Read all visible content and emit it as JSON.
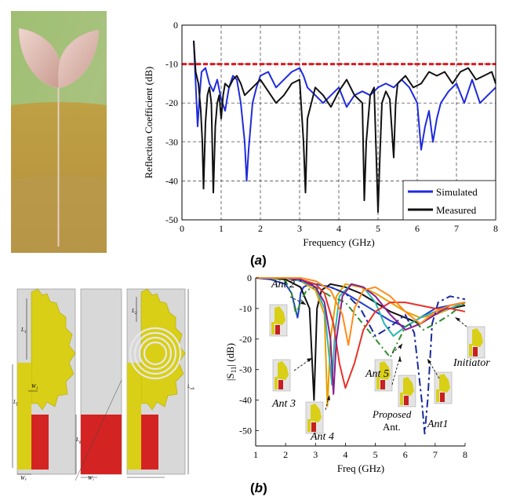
{
  "panel_a_label": "a",
  "panel_b_label": "b",
  "chart_data": [
    {
      "type": "line",
      "xlabel": "Frequency (GHz)",
      "ylabel": "Reflection Coefficient (dB)",
      "xlim": [
        0,
        8
      ],
      "ylim": [
        -50,
        0
      ],
      "xticks": [
        0,
        1,
        2,
        3,
        4,
        5,
        6,
        7,
        8
      ],
      "yticks": [
        0,
        -10,
        -20,
        -30,
        -40,
        -50
      ],
      "grid": true,
      "legend_position": "bottom-right",
      "threshold": {
        "y": -10,
        "color": "#e8141b",
        "style": "dashed"
      },
      "series": [
        {
          "name": "Simulated",
          "color": "#1f2bdb",
          "x": [
            0.3,
            0.35,
            0.4,
            0.45,
            0.5,
            0.6,
            0.7,
            0.8,
            0.9,
            1.0,
            1.1,
            1.2,
            1.3,
            1.4,
            1.5,
            1.6,
            1.65,
            1.7,
            1.8,
            1.9,
            2.0,
            2.2,
            2.4,
            2.6,
            2.8,
            3.0,
            3.1,
            3.2,
            3.4,
            3.6,
            3.8,
            4.0,
            4.2,
            4.4,
            4.6,
            4.8,
            5.0,
            5.2,
            5.4,
            5.6,
            5.8,
            6.0,
            6.1,
            6.2,
            6.3,
            6.4,
            6.5,
            6.6,
            6.8,
            7.0,
            7.2,
            7.4,
            7.6,
            7.8,
            8.0
          ],
          "y": [
            -4,
            -15,
            -26,
            -18,
            -12,
            -11,
            -15,
            -17,
            -14,
            -19,
            -22,
            -16,
            -13,
            -14,
            -20,
            -30,
            -40,
            -32,
            -20,
            -16,
            -13,
            -12,
            -16,
            -14,
            -12,
            -11,
            -13,
            -16,
            -18,
            -20,
            -18,
            -16,
            -21,
            -18,
            -17,
            -18,
            -16,
            -15,
            -16,
            -14,
            -16,
            -20,
            -32,
            -26,
            -22,
            -30,
            -24,
            -20,
            -17,
            -15,
            -20,
            -14,
            -20,
            -18,
            -16
          ]
        },
        {
          "name": "Measured",
          "color": "#111111",
          "x": [
            0.3,
            0.35,
            0.42,
            0.48,
            0.52,
            0.55,
            0.6,
            0.65,
            0.7,
            0.75,
            0.8,
            0.85,
            0.9,
            0.95,
            1.0,
            1.05,
            1.1,
            1.2,
            1.3,
            1.4,
            1.5,
            1.6,
            1.8,
            2.0,
            2.2,
            2.4,
            2.6,
            2.8,
            3.0,
            3.1,
            3.15,
            3.2,
            3.4,
            3.6,
            3.8,
            4.0,
            4.2,
            4.4,
            4.6,
            4.65,
            4.7,
            4.8,
            4.9,
            5.0,
            5.05,
            5.1,
            5.2,
            5.3,
            5.4,
            5.45,
            5.5,
            5.7,
            5.9,
            6.1,
            6.3,
            6.5,
            6.7,
            6.9,
            7.1,
            7.3,
            7.5,
            7.7,
            7.9,
            8.0
          ],
          "y": [
            -4,
            -12,
            -15,
            -22,
            -30,
            -42,
            -25,
            -18,
            -16,
            -20,
            -43,
            -26,
            -20,
            -18,
            -24,
            -18,
            -15,
            -16,
            -14,
            -13,
            -15,
            -18,
            -16,
            -14,
            -17,
            -20,
            -18,
            -15,
            -14,
            -30,
            -43,
            -24,
            -16,
            -18,
            -21,
            -17,
            -14,
            -18,
            -20,
            -45,
            -30,
            -18,
            -16,
            -48,
            -33,
            -20,
            -17,
            -19,
            -34,
            -20,
            -15,
            -13,
            -16,
            -15,
            -12,
            -13,
            -12,
            -15,
            -12,
            -11,
            -14,
            -13,
            -12,
            -15
          ]
        }
      ]
    },
    {
      "type": "line",
      "xlabel": "Freq (GHz)",
      "ylabel": "|S11| (dB)",
      "ylabel_main": "|S",
      "ylabel_sub": "11",
      "ylabel_tail": "| (dB)",
      "xlim": [
        1,
        8
      ],
      "ylim": [
        -55,
        0
      ],
      "xticks": [
        1,
        2,
        3,
        4,
        5,
        6,
        7,
        8
      ],
      "yticks": [
        0,
        -10,
        -20,
        -30,
        -40,
        -50
      ],
      "grid": false,
      "annotations": [
        "Ant 2",
        "Ant 3",
        "Ant 4",
        "Ant 5",
        "Proposed",
        "Ant.",
        "Ant1",
        "Initiator"
      ],
      "series": [
        {
          "name": "Ant 2",
          "color": "#1f3fd1",
          "dash": "none",
          "x": [
            1,
            1.5,
            2,
            2.2,
            2.4,
            2.45,
            2.5,
            2.6,
            2.8,
            3.0,
            3.5,
            4,
            4.5,
            5,
            5.5,
            6,
            6.5,
            7,
            7.5,
            8
          ],
          "y": [
            0,
            -0.5,
            -2,
            -5,
            -13,
            -10,
            -5,
            -3,
            -2,
            -2,
            -3,
            -5,
            -8,
            -11,
            -14,
            -16,
            -13,
            -10,
            -9,
            -8
          ]
        },
        {
          "name": "Ant 3",
          "color": "#111111",
          "dash": "none",
          "x": [
            1,
            1.5,
            2,
            2.5,
            2.8,
            2.95,
            3.0,
            3.05,
            3.2,
            3.5,
            4,
            4.5,
            5,
            5.5,
            6,
            6.5,
            7,
            7.5,
            8
          ],
          "y": [
            0,
            0,
            -0.5,
            -3,
            -10,
            -40,
            -25,
            -10,
            -4,
            -2,
            -3,
            -5,
            -8,
            -11,
            -13,
            -15,
            -12,
            -10,
            -9
          ]
        },
        {
          "name": "Ant 4",
          "color": "#e8a000",
          "dash": "none",
          "x": [
            1,
            1.5,
            2,
            2.5,
            3.0,
            3.3,
            3.4,
            3.5,
            3.7,
            4,
            4.5,
            5,
            5.5,
            6,
            6.5,
            7,
            7.5,
            8
          ],
          "y": [
            0,
            0,
            0,
            -1,
            -4,
            -12,
            -42,
            -20,
            -6,
            -2,
            -3,
            -5,
            -8,
            -11,
            -13,
            -12,
            -10,
            -8
          ]
        },
        {
          "name": "Ant 5",
          "color": "#2ab8b0",
          "dash": "none",
          "x": [
            1,
            1.5,
            2,
            2.5,
            3.0,
            3.3,
            3.55,
            3.65,
            3.8,
            4.2,
            4.6,
            5.0,
            5.3,
            5.6,
            6,
            6.5,
            7,
            7.5,
            8
          ],
          "y": [
            0,
            0,
            0,
            -1,
            -3,
            -10,
            -35,
            -18,
            -6,
            -2,
            -3,
            -8,
            -15,
            -19,
            -16,
            -13,
            -11,
            -10,
            -8
          ]
        },
        {
          "name": "Proposed Ant.",
          "color": "#2e8b2e",
          "dash": "8,4,2,4",
          "x": [
            1,
            1.5,
            2,
            2.2,
            2.35,
            2.5,
            2.7,
            3.0,
            3.5,
            4,
            4.5,
            5,
            5.5,
            5.8,
            6,
            6.3,
            6.6,
            7,
            7.5,
            8
          ],
          "y": [
            0,
            0,
            -1,
            -5,
            -12,
            -8,
            -4,
            -3,
            -6,
            -8,
            -14,
            -20,
            -26,
            -20,
            -16,
            -14,
            -17,
            -15,
            -12,
            -8
          ]
        },
        {
          "name": "Ant1",
          "color": "#1a2a9c",
          "dash": "10,4,3,4",
          "x": [
            1,
            1.5,
            2,
            2.5,
            3,
            3.5,
            4,
            4.5,
            5,
            5.5,
            6,
            6.3,
            6.55,
            6.65,
            6.75,
            6.9,
            7.1,
            7.5,
            8
          ],
          "y": [
            0,
            0,
            0,
            -1,
            -2,
            -3,
            -5,
            -10,
            -19,
            -16,
            -12,
            -18,
            -40,
            -51,
            -40,
            -15,
            -8,
            -6,
            -7
          ]
        },
        {
          "name": "Initiator",
          "color": "#e8322a",
          "dash": "none",
          "x": [
            1,
            1.5,
            2,
            2.5,
            3,
            3.3,
            3.6,
            3.8,
            4.0,
            4.3,
            4.6,
            5,
            5.5,
            6,
            6.5,
            7,
            7.5,
            8
          ],
          "y": [
            0,
            0,
            0,
            -0.5,
            -2,
            -5,
            -15,
            -28,
            -36,
            -28,
            -17,
            -11,
            -8,
            -8,
            -9,
            -10,
            -10,
            -11
          ]
        },
        {
          "name": "",
          "color": "#8b1f8b",
          "dash": "none",
          "x": [
            1,
            1.5,
            2,
            2.5,
            3.0,
            3.3,
            3.5,
            3.6,
            3.7,
            3.9,
            4.2,
            4.6,
            5,
            5.5,
            6,
            6.5,
            7,
            7.5,
            8
          ],
          "y": [
            0,
            0,
            0,
            -0.5,
            -3,
            -8,
            -20,
            -38,
            -20,
            -6,
            -2,
            -3,
            -6,
            -12,
            -17,
            -15,
            -12,
            -9,
            -8
          ]
        },
        {
          "name": "",
          "color": "#ff8c1a",
          "dash": "none",
          "x": [
            1,
            1.5,
            2,
            2.5,
            3.0,
            3.5,
            3.9,
            4.1,
            4.3,
            4.6,
            5,
            5.5,
            6,
            6.5,
            7,
            7.5,
            8
          ],
          "y": [
            0,
            0,
            0,
            0,
            -1,
            -4,
            -12,
            -22,
            -10,
            -4,
            -3,
            -6,
            -11,
            -15,
            -11,
            -9,
            -8
          ]
        }
      ]
    }
  ],
  "legend_a": {
    "simulated": "Simulated",
    "measured": "Measured"
  },
  "dims_left": {
    "L1": "L",
    "L1_sub": "1",
    "Lf": "L",
    "Lf_sub": "f",
    "W1": "W",
    "W1_sub": "1",
    "Wf": "W",
    "Wf_sub": "f"
  },
  "dims_mid": {
    "Lg": "L",
    "Lg_sub": "g",
    "Wc": "W",
    "Wc_sub": "c"
  },
  "dims_right": {
    "L2": "L",
    "L2_sub": "2",
    "Lsub": "L",
    "Lsub_sub": "sub"
  },
  "ant_labels": {
    "ant2": "Ant 2",
    "ant3": "Ant 3",
    "ant4": "Ant 4",
    "ant5": "Ant 5",
    "proposed_line1": "Proposed",
    "proposed_line2": "Ant.",
    "ant1": "Ant1",
    "initiator": "Initiator"
  }
}
